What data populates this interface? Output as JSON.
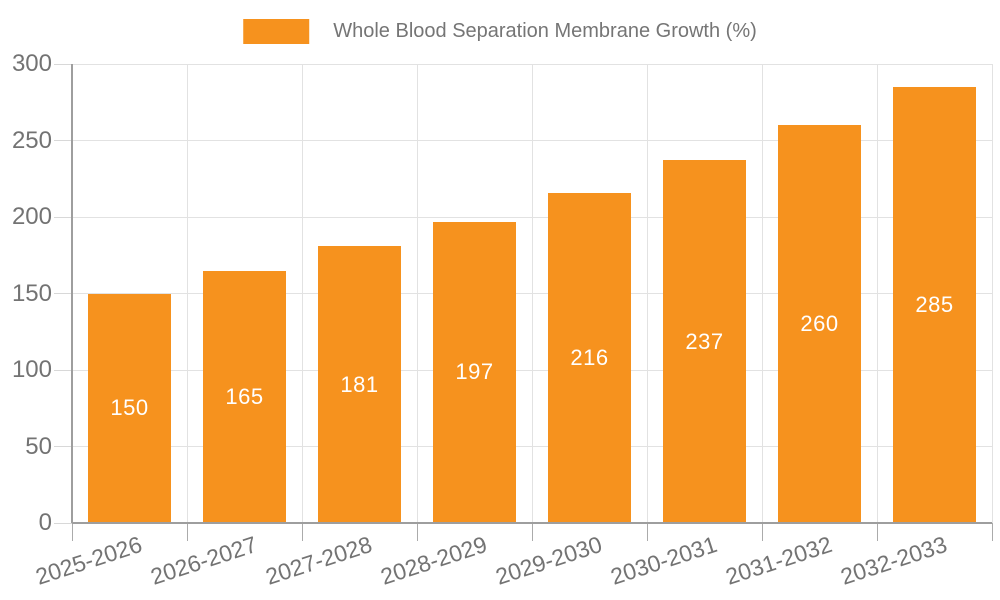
{
  "chart_data": {
    "type": "bar",
    "title": "Whole Blood Separation Membrane Growth (%)",
    "categories": [
      "2025-2026",
      "2026-2027",
      "2027-2028",
      "2028-2029",
      "2029-2030",
      "2030-2031",
      "2031-2032",
      "2032-2033"
    ],
    "values": [
      150,
      165,
      181,
      197,
      216,
      237,
      260,
      285
    ],
    "xlabel": "",
    "ylabel": "",
    "ylim": [
      0,
      300
    ],
    "yticks": [
      0,
      50,
      100,
      150,
      200,
      250,
      300
    ],
    "grid": true,
    "legend_position": "top-center",
    "bar_label_position": "inside-center",
    "x_label_rotation_deg": -18
  },
  "legend": {
    "label": "Whole Blood Separation Membrane Growth (%)"
  },
  "colors": {
    "bar": "#f6921e",
    "bar_label": "#ffffff",
    "axis_line": "#9e9e9e",
    "gridline": "#e2e2e2",
    "y_tick": "#d8d8d8",
    "x_tick": "#ababab",
    "axis_text": "#737373",
    "legend_text": "#757575",
    "background": "#ffffff"
  }
}
